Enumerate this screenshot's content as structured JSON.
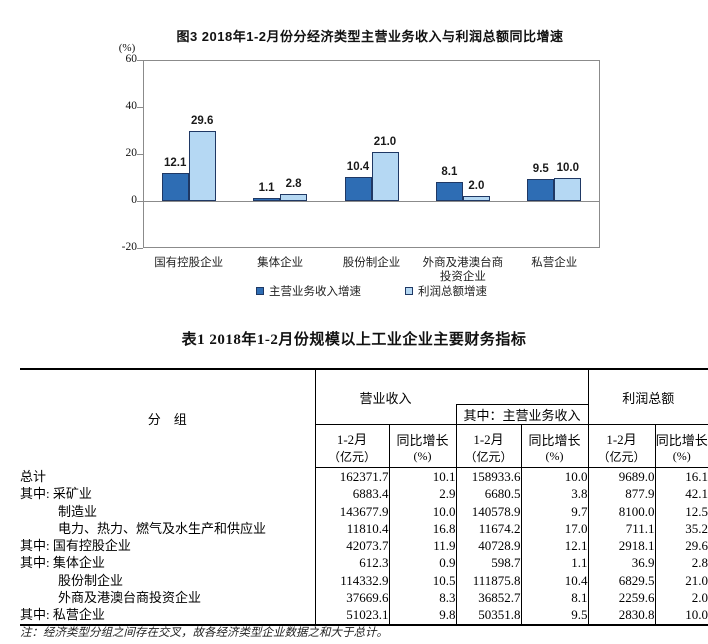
{
  "chart_data": {
    "type": "bar",
    "title": "图3 2018年1-2月份分经济类型主营业务收入与利润总额同比增速",
    "y_unit": "(%)",
    "ylim": [
      -20,
      60
    ],
    "yticks": [
      60,
      40,
      20,
      0,
      -20
    ],
    "grid": false,
    "legend_position": "bottom",
    "categories": [
      "国有控股企业",
      "集体企业",
      "股份制企业",
      "外商及港澳台商\n投资企业",
      "私营企业"
    ],
    "series": [
      {
        "name": "主营业务收入增速",
        "color": "#2e6db4",
        "border_color": "#1f3864",
        "values": [
          12.1,
          1.1,
          10.4,
          8.1,
          9.5
        ],
        "labels": [
          "12.1",
          "1.1",
          "10.4",
          "8.1",
          "9.5"
        ]
      },
      {
        "name": "利润总额增速",
        "color": "#b5d8f3",
        "border_color": "#1f3864",
        "values": [
          29.6,
          2.8,
          21.0,
          2.0,
          10.0
        ],
        "labels": [
          "29.6",
          "2.8",
          "21.0",
          "2.0",
          "10.0"
        ]
      }
    ]
  },
  "table": {
    "title": "表1 2018年1-2月份规模以上工业企业主要财务指标",
    "group_col": "分　组",
    "revenue_header": "营业收入",
    "main_revenue_header": "其中：主营业务收入",
    "profit_header": "利润总额",
    "subheads": [
      {
        "line1": "1-2月",
        "line2": "（亿元）"
      },
      {
        "line1": "同比增长",
        "line2": "(%)"
      },
      {
        "line1": "1-2月",
        "line2": "（亿元）"
      },
      {
        "line1": "同比增长",
        "line2": "(%)"
      },
      {
        "line1": "1-2月",
        "line2": "（亿元）"
      },
      {
        "line1": "同比增长",
        "line2": "(%)"
      }
    ],
    "rows": [
      {
        "label": "总计",
        "indent": false,
        "values": [
          "162371.7",
          "10.1",
          "158933.6",
          "10.0",
          "9689.0",
          "16.1"
        ]
      },
      {
        "label": "其中: 采矿业",
        "indent": false,
        "values": [
          "6883.4",
          "2.9",
          "6680.5",
          "3.8",
          "877.9",
          "42.1"
        ]
      },
      {
        "label": "制造业",
        "indent": true,
        "values": [
          "143677.9",
          "10.0",
          "140578.9",
          "9.7",
          "8100.0",
          "12.5"
        ]
      },
      {
        "label": "电力、热力、燃气及水生产和供应业",
        "indent": true,
        "values": [
          "11810.4",
          "16.8",
          "11674.2",
          "17.0",
          "711.1",
          "35.2"
        ]
      },
      {
        "label": "其中: 国有控股企业",
        "indent": false,
        "values": [
          "42073.7",
          "11.9",
          "40728.9",
          "12.1",
          "2918.1",
          "29.6"
        ]
      },
      {
        "label": "其中: 集体企业",
        "indent": false,
        "values": [
          "612.3",
          "0.9",
          "598.7",
          "1.1",
          "36.9",
          "2.8"
        ]
      },
      {
        "label": "股份制企业",
        "indent": true,
        "values": [
          "114332.9",
          "10.5",
          "111875.8",
          "10.4",
          "6829.5",
          "21.0"
        ]
      },
      {
        "label": "外商及港澳台商投资企业",
        "indent": true,
        "values": [
          "37669.6",
          "8.3",
          "36852.7",
          "8.1",
          "2259.6",
          "2.0"
        ]
      },
      {
        "label": "其中: 私营企业",
        "indent": false,
        "values": [
          "51023.1",
          "9.8",
          "50351.8",
          "9.5",
          "2830.8",
          "10.0"
        ]
      }
    ],
    "note": "注：经济类型分组之间存在交叉，故各经济类型企业数据之和大于总计。"
  }
}
